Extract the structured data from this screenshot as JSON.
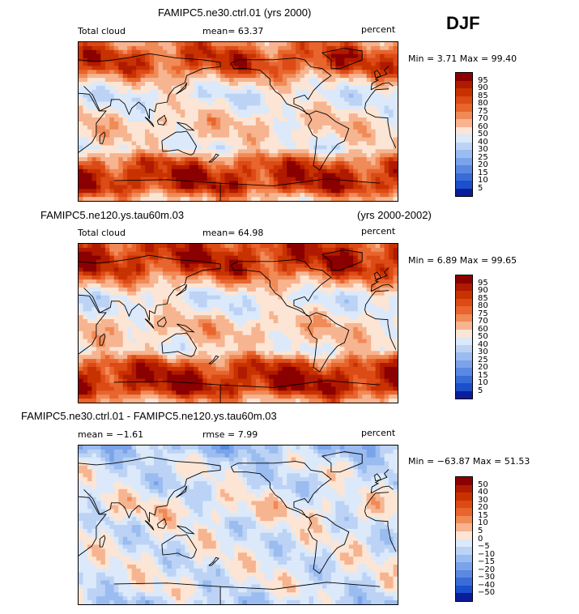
{
  "season": "DJF",
  "panels": [
    {
      "title_left": "FAMIPC5.ne30.ctrl.01 (yrs 2000)",
      "title_right": "",
      "variable": "Total cloud",
      "stat_text": "mean=  63.37",
      "rmse_text": "",
      "units": "percent",
      "minmax_text": "Min =   3.71 Max =  99.40",
      "colorbar_labels": [
        "95",
        "90",
        "85",
        "80",
        "75",
        "70",
        "60",
        "50",
        "40",
        "30",
        "25",
        "20",
        "15",
        "10",
        "5"
      ],
      "colorbar_colors": [
        "#8b0000",
        "#b01a00",
        "#c83200",
        "#dc4a16",
        "#e8652e",
        "#f08a56",
        "#f6b490",
        "#fce5d4",
        "#dbe9fa",
        "#bcd3f5",
        "#9abcf0",
        "#7aa3ea",
        "#5a89e2",
        "#3a6cd8",
        "#1c4fcc",
        "#0a1e9c"
      ]
    },
    {
      "title_left": "FAMIPC5.ne120.ys.tau60m.03",
      "title_right": "(yrs 2000-2002)",
      "variable": "Total cloud",
      "stat_text": "mean=  64.98",
      "rmse_text": "",
      "units": "percent",
      "minmax_text": "Min =   6.89 Max =  99.65",
      "colorbar_labels": [
        "95",
        "90",
        "85",
        "80",
        "75",
        "70",
        "60",
        "50",
        "40",
        "30",
        "25",
        "20",
        "15",
        "10",
        "5"
      ],
      "colorbar_colors": [
        "#8b0000",
        "#b01a00",
        "#c83200",
        "#dc4a16",
        "#e8652e",
        "#f08a56",
        "#f6b490",
        "#fce5d4",
        "#dbe9fa",
        "#bcd3f5",
        "#9abcf0",
        "#7aa3ea",
        "#5a89e2",
        "#3a6cd8",
        "#1c4fcc",
        "#0a1e9c"
      ]
    },
    {
      "title_left": "FAMIPC5.ne30.ctrl.01 - FAMIPC5.ne120.ys.tau60m.03",
      "title_right": "",
      "variable": "",
      "stat_text": "mean =  −1.61",
      "rmse_text": "rmse =    7.99",
      "units": "percent",
      "minmax_text": "Min = −63.87 Max =  51.53",
      "colorbar_labels": [
        "50",
        "40",
        "30",
        "20",
        "15",
        "10",
        "5",
        "0",
        "−5",
        "−10",
        "−15",
        "−20",
        "−30",
        "−40",
        "−50"
      ],
      "colorbar_colors": [
        "#8b0000",
        "#b01a00",
        "#c83200",
        "#dc4a16",
        "#e8652e",
        "#f08a56",
        "#f6b490",
        "#fce5d4",
        "#dbe9fa",
        "#bcd3f5",
        "#9abcf0",
        "#7aa3ea",
        "#5a89e2",
        "#3a6cd8",
        "#1c4fcc",
        "#0a1e9c"
      ]
    }
  ],
  "chart_data": [
    {
      "type": "heatmap",
      "title": "FAMIPC5.ne30.ctrl.01 (yrs 2000)",
      "variable": "Total cloud",
      "units": "percent",
      "season": "DJF",
      "mean": 63.37,
      "min": 3.71,
      "max": 99.4,
      "contour_levels": [
        5,
        10,
        15,
        20,
        25,
        30,
        40,
        50,
        60,
        70,
        75,
        80,
        85,
        90,
        95
      ],
      "lat_bands_deg": [
        90,
        75,
        60,
        45,
        30,
        15,
        0,
        -15,
        -30,
        -45,
        -60,
        -75,
        -90
      ],
      "zonal_pattern_percent": [
        72,
        85,
        82,
        60,
        45,
        52,
        60,
        58,
        50,
        80,
        90,
        88,
        60
      ]
    },
    {
      "type": "heatmap",
      "title": "FAMIPC5.ne120.ys.tau60m.03 (yrs 2000-2002)",
      "variable": "Total cloud",
      "units": "percent",
      "season": "DJF",
      "mean": 64.98,
      "min": 6.89,
      "max": 99.65,
      "contour_levels": [
        5,
        10,
        15,
        20,
        25,
        30,
        40,
        50,
        60,
        70,
        75,
        80,
        85,
        90,
        95
      ],
      "lat_bands_deg": [
        90,
        75,
        60,
        45,
        30,
        15,
        0,
        -15,
        -30,
        -45,
        -60,
        -75,
        -90
      ],
      "zonal_pattern_percent": [
        85,
        90,
        85,
        65,
        45,
        50,
        62,
        60,
        52,
        82,
        92,
        90,
        65
      ]
    },
    {
      "type": "heatmap",
      "title": "FAMIPC5.ne30.ctrl.01 - FAMIPC5.ne120.ys.tau60m.03",
      "units": "percent",
      "season": "DJF",
      "mean": -1.61,
      "rmse": 7.99,
      "min": -63.87,
      "max": 51.53,
      "contour_levels": [
        -50,
        -40,
        -30,
        -20,
        -15,
        -10,
        -5,
        0,
        5,
        10,
        15,
        20,
        30,
        40,
        50
      ],
      "lat_bands_deg": [
        90,
        75,
        60,
        45,
        30,
        15,
        0,
        -15,
        -30,
        -45,
        -60,
        -75,
        -90
      ],
      "zonal_pattern_percent": [
        -12,
        -5,
        -3,
        -5,
        0,
        2,
        -2,
        -2,
        -2,
        -2,
        -2,
        -2,
        -8
      ]
    }
  ]
}
